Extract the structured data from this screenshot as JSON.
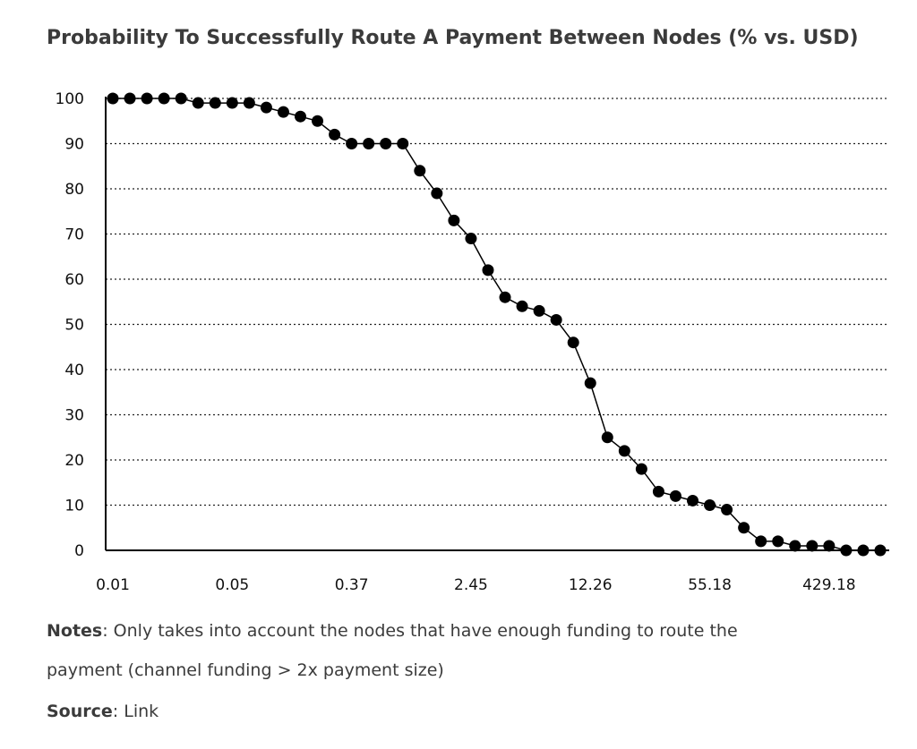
{
  "chart_data": {
    "type": "line",
    "title": "Probability To Successfully Route A Payment Between Nodes (% vs. USD)",
    "xlabel": "",
    "ylabel": "",
    "ylim": [
      0,
      100
    ],
    "yticks": [
      0,
      10,
      20,
      30,
      40,
      50,
      60,
      70,
      80,
      90,
      100
    ],
    "x_tick_labels": [
      "0.01",
      "0.05",
      "0.37",
      "2.45",
      "12.26",
      "55.18",
      "429.18"
    ],
    "grid": "horizontal dotted",
    "markers": true,
    "color": "#000000",
    "series": [
      {
        "values": [
          100,
          100,
          100,
          100,
          100,
          99,
          99,
          99,
          99,
          98,
          97,
          96,
          95,
          92,
          90,
          90,
          90,
          90,
          84,
          79,
          73,
          69,
          62,
          56,
          54,
          53,
          51,
          46,
          37,
          25,
          22,
          18,
          13,
          12,
          11,
          10,
          9,
          5,
          2,
          2,
          1,
          1,
          1,
          0,
          0,
          0
        ]
      }
    ]
  },
  "notes": {
    "label": "Notes",
    "text_line1": ": Only takes into account the nodes that have enough funding to route the",
    "text_line2": "payment (channel funding > 2x payment size)"
  },
  "source": {
    "label": "Source",
    "text": ": Link"
  }
}
